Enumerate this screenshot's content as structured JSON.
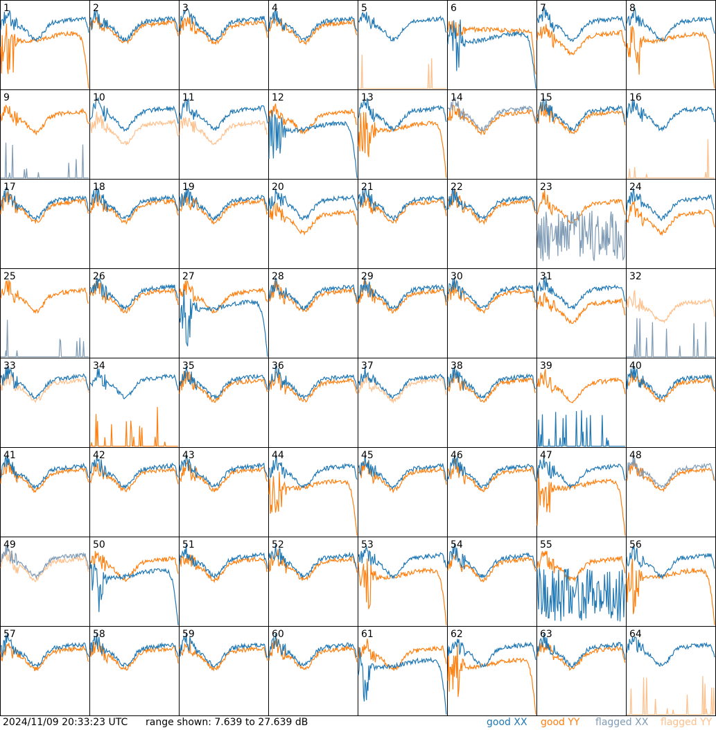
{
  "timestamp": "2024/11/09 20:33:23 UTC",
  "range_text": "range shown: 7.639 to 27.639 dB",
  "legend": {
    "good_xx": "good XX",
    "good_yy": "good YY",
    "flagged_xx": "flagged XX",
    "flagged_yy": "flagged YY"
  },
  "colors": {
    "good_xx": "#1f77b4",
    "good_yy": "#ff7f0e",
    "flagged_xx": "#7f9bb5",
    "flagged_yy": "#ffbf8a"
  },
  "chart_data": {
    "type": "line",
    "layout": "8x8 small multiples",
    "ylim_db": [
      7.639,
      27.639
    ],
    "xlabel": "",
    "ylabel": "",
    "grid": false,
    "legend_placement": "bottom-right",
    "panels": [
      {
        "label": "1",
        "xx": "good",
        "yy": "good",
        "xx_shape": "normal",
        "yy_shape": "dropoff"
      },
      {
        "label": "2",
        "xx": "good",
        "yy": "good",
        "xx_shape": "normal",
        "yy_shape": "normal"
      },
      {
        "label": "3",
        "xx": "good",
        "yy": "good",
        "xx_shape": "normal",
        "yy_shape": "normal"
      },
      {
        "label": "4",
        "xx": "good",
        "yy": "good",
        "xx_shape": "normal",
        "yy_shape": "normal"
      },
      {
        "label": "5",
        "xx": "good",
        "yy": "flagged",
        "xx_shape": "normal",
        "yy_shape": "spikes"
      },
      {
        "label": "6",
        "xx": "good",
        "yy": "good",
        "xx_shape": "dropoff",
        "yy_shape": "flat"
      },
      {
        "label": "7",
        "xx": "good",
        "yy": "good",
        "xx_shape": "normal",
        "yy_shape": "low"
      },
      {
        "label": "8",
        "xx": "good",
        "yy": "good",
        "xx_shape": "normal",
        "yy_shape": "dropoff"
      },
      {
        "label": "9",
        "xx": "flagged",
        "yy": "good",
        "xx_shape": "spikes",
        "yy_shape": "normal"
      },
      {
        "label": "10",
        "xx": "good",
        "yy": "flagged",
        "xx_shape": "normal",
        "yy_shape": "low"
      },
      {
        "label": "11",
        "xx": "good",
        "yy": "flagged",
        "xx_shape": "normal",
        "yy_shape": "low"
      },
      {
        "label": "12",
        "xx": "good",
        "yy": "good",
        "xx_shape": "dropoff",
        "yy_shape": "normal"
      },
      {
        "label": "13",
        "xx": "good",
        "yy": "good",
        "xx_shape": "normal",
        "yy_shape": "dropoff"
      },
      {
        "label": "14",
        "xx": "flagged",
        "yy": "good",
        "xx_shape": "normal",
        "yy_shape": "normal"
      },
      {
        "label": "15",
        "xx": "good",
        "yy": "good",
        "xx_shape": "normal",
        "yy_shape": "normal"
      },
      {
        "label": "16",
        "xx": "good",
        "yy": "flagged",
        "xx_shape": "normal",
        "yy_shape": "spikes"
      },
      {
        "label": "17",
        "xx": "good",
        "yy": "good",
        "xx_shape": "normal",
        "yy_shape": "normal"
      },
      {
        "label": "18",
        "xx": "good",
        "yy": "good",
        "xx_shape": "normal",
        "yy_shape": "normal"
      },
      {
        "label": "19",
        "xx": "good",
        "yy": "good",
        "xx_shape": "normal",
        "yy_shape": "normal"
      },
      {
        "label": "20",
        "xx": "good",
        "yy": "good",
        "xx_shape": "normal",
        "yy_shape": "low"
      },
      {
        "label": "21",
        "xx": "good",
        "yy": "good",
        "xx_shape": "normal",
        "yy_shape": "normal"
      },
      {
        "label": "22",
        "xx": "good",
        "yy": "good",
        "xx_shape": "normal",
        "yy_shape": "normal"
      },
      {
        "label": "23",
        "xx": "flagged",
        "yy": "good",
        "xx_shape": "noise",
        "yy_shape": "normal"
      },
      {
        "label": "24",
        "xx": "good",
        "yy": "good",
        "xx_shape": "normal",
        "yy_shape": "low"
      },
      {
        "label": "25",
        "xx": "flagged",
        "yy": "good",
        "xx_shape": "spikes",
        "yy_shape": "normal"
      },
      {
        "label": "26",
        "xx": "good",
        "yy": "good",
        "xx_shape": "normal",
        "yy_shape": "normal"
      },
      {
        "label": "27",
        "xx": "good",
        "yy": "good",
        "xx_shape": "dropoff",
        "yy_shape": "normal"
      },
      {
        "label": "28",
        "xx": "good",
        "yy": "good",
        "xx_shape": "normal",
        "yy_shape": "normal"
      },
      {
        "label": "29",
        "xx": "good",
        "yy": "good",
        "xx_shape": "normal",
        "yy_shape": "normal"
      },
      {
        "label": "30",
        "xx": "good",
        "yy": "good",
        "xx_shape": "normal",
        "yy_shape": "normal"
      },
      {
        "label": "31",
        "xx": "good",
        "yy": "good",
        "xx_shape": "normal",
        "yy_shape": "low"
      },
      {
        "label": "32",
        "xx": "flagged",
        "yy": "flagged",
        "xx_shape": "spikes",
        "yy_shape": "low"
      },
      {
        "label": "33",
        "xx": "good",
        "yy": "flagged",
        "xx_shape": "normal",
        "yy_shape": "normal"
      },
      {
        "label": "34",
        "xx": "good",
        "yy": "good",
        "xx_shape": "normal",
        "yy_shape": "spikes"
      },
      {
        "label": "35",
        "xx": "good",
        "yy": "good",
        "xx_shape": "normal",
        "yy_shape": "normal"
      },
      {
        "label": "36",
        "xx": "good",
        "yy": "good",
        "xx_shape": "normal",
        "yy_shape": "normal"
      },
      {
        "label": "37",
        "xx": "good",
        "yy": "flagged",
        "xx_shape": "normal",
        "yy_shape": "normal"
      },
      {
        "label": "38",
        "xx": "good",
        "yy": "good",
        "xx_shape": "normal",
        "yy_shape": "normal"
      },
      {
        "label": "39",
        "xx": "good",
        "yy": "good",
        "xx_shape": "spikes",
        "yy_shape": "normal"
      },
      {
        "label": "40",
        "xx": "good",
        "yy": "good",
        "xx_shape": "normal",
        "yy_shape": "normal"
      },
      {
        "label": "41",
        "xx": "good",
        "yy": "good",
        "xx_shape": "normal",
        "yy_shape": "normal"
      },
      {
        "label": "42",
        "xx": "good",
        "yy": "good",
        "xx_shape": "normal",
        "yy_shape": "normal"
      },
      {
        "label": "43",
        "xx": "good",
        "yy": "good",
        "xx_shape": "normal",
        "yy_shape": "normal"
      },
      {
        "label": "44",
        "xx": "good",
        "yy": "good",
        "xx_shape": "normal",
        "yy_shape": "dropoff"
      },
      {
        "label": "45",
        "xx": "good",
        "yy": "good",
        "xx_shape": "normal",
        "yy_shape": "normal"
      },
      {
        "label": "46",
        "xx": "good",
        "yy": "good",
        "xx_shape": "normal",
        "yy_shape": "normal"
      },
      {
        "label": "47",
        "xx": "good",
        "yy": "good",
        "xx_shape": "normal",
        "yy_shape": "dropoff"
      },
      {
        "label": "48",
        "xx": "flagged",
        "yy": "good",
        "xx_shape": "normal",
        "yy_shape": "normal"
      },
      {
        "label": "49",
        "xx": "flagged",
        "yy": "flagged",
        "xx_shape": "normal",
        "yy_shape": "normal"
      },
      {
        "label": "50",
        "xx": "good",
        "yy": "good",
        "xx_shape": "dropoff",
        "yy_shape": "normal"
      },
      {
        "label": "51",
        "xx": "good",
        "yy": "good",
        "xx_shape": "normal",
        "yy_shape": "normal"
      },
      {
        "label": "52",
        "xx": "good",
        "yy": "good",
        "xx_shape": "normal",
        "yy_shape": "normal"
      },
      {
        "label": "53",
        "xx": "good",
        "yy": "good",
        "xx_shape": "normal",
        "yy_shape": "dropoff"
      },
      {
        "label": "54",
        "xx": "good",
        "yy": "good",
        "xx_shape": "normal",
        "yy_shape": "normal"
      },
      {
        "label": "55",
        "xx": "good",
        "yy": "good",
        "xx_shape": "noise",
        "yy_shape": "normal"
      },
      {
        "label": "56",
        "xx": "good",
        "yy": "good",
        "xx_shape": "normal",
        "yy_shape": "dropoff"
      },
      {
        "label": "57",
        "xx": "good",
        "yy": "good",
        "xx_shape": "normal",
        "yy_shape": "normal"
      },
      {
        "label": "58",
        "xx": "good",
        "yy": "good",
        "xx_shape": "normal",
        "yy_shape": "normal"
      },
      {
        "label": "59",
        "xx": "good",
        "yy": "good",
        "xx_shape": "normal",
        "yy_shape": "normal"
      },
      {
        "label": "60",
        "xx": "good",
        "yy": "good",
        "xx_shape": "normal",
        "yy_shape": "normal"
      },
      {
        "label": "61",
        "xx": "good",
        "yy": "good",
        "xx_shape": "dropoff",
        "yy_shape": "normal"
      },
      {
        "label": "62",
        "xx": "good",
        "yy": "good",
        "xx_shape": "normal",
        "yy_shape": "dropoff"
      },
      {
        "label": "63",
        "xx": "good",
        "yy": "good",
        "xx_shape": "normal",
        "yy_shape": "normal"
      },
      {
        "label": "64",
        "xx": "good",
        "yy": "flagged",
        "xx_shape": "normal",
        "yy_shape": "spikes"
      }
    ]
  }
}
